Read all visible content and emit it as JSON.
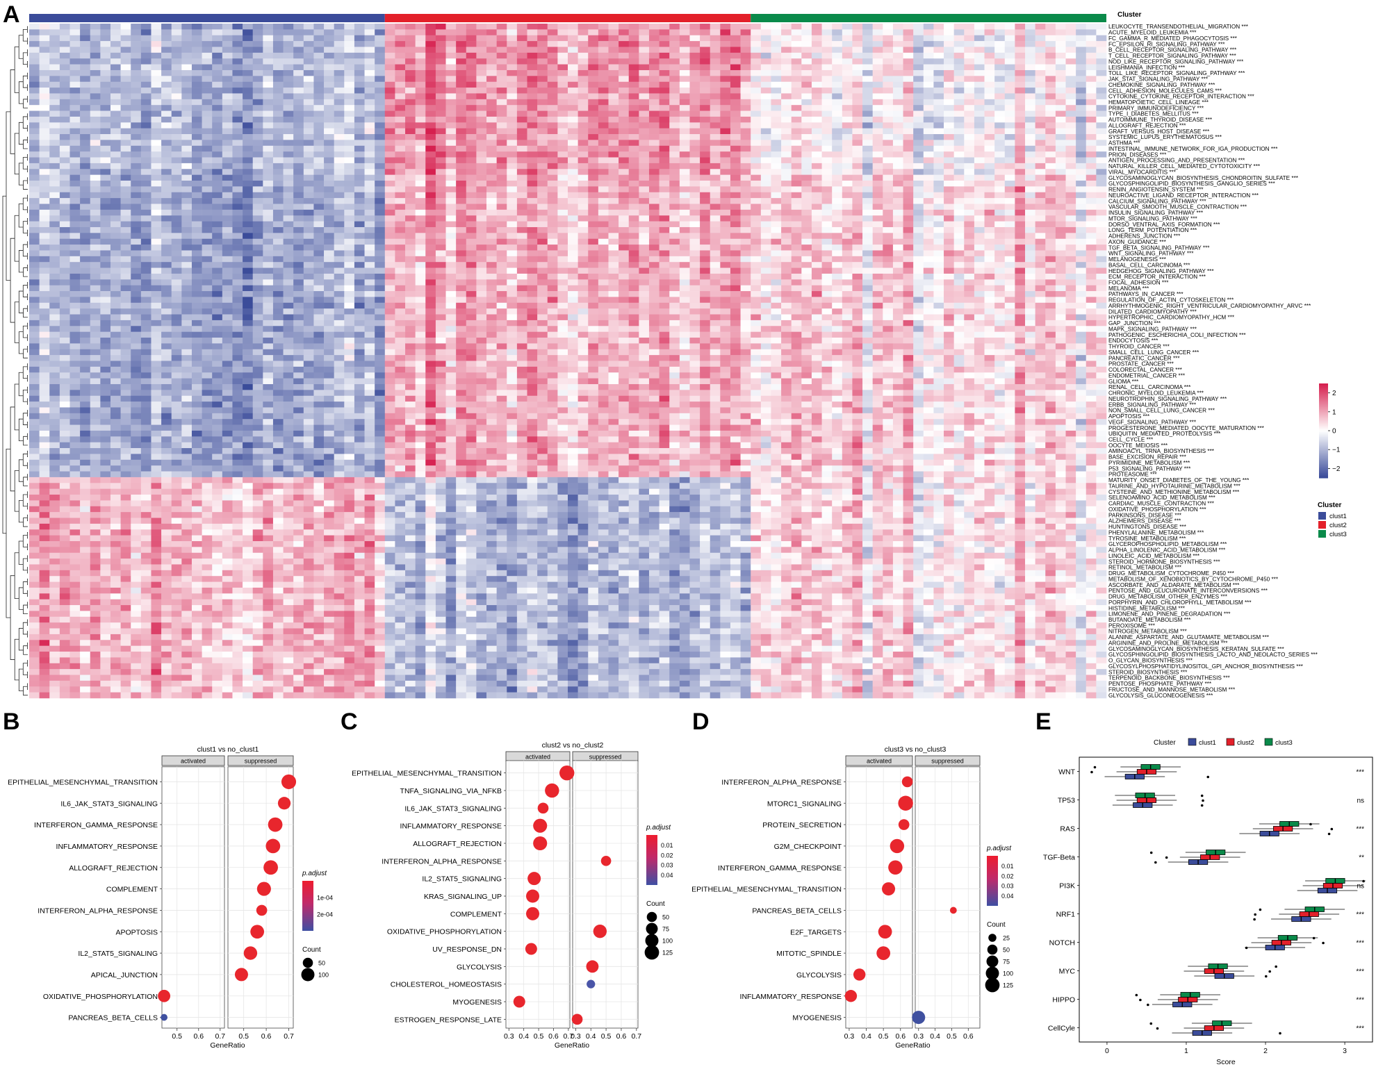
{
  "panel_letters": [
    "A",
    "B",
    "C",
    "D",
    "E"
  ],
  "heatmap": {
    "cluster_label": "Cluster",
    "clusters": [
      "clust1",
      "clust2",
      "clust3"
    ],
    "cluster_colors": [
      "#3b4c9a",
      "#e3202a",
      "#0a8a4a"
    ],
    "colorbar_ticks": [
      "2",
      "1",
      "0",
      "−1",
      "−2"
    ],
    "legend_title": "Cluster",
    "pathways": [
      "LEUKOCYTE_TRANSENDOTHELIAL_MIGRATION ***",
      "ACUTE_MYELOID_LEUKEMIA ***",
      "FC_GAMMA_R_MEDIATED_PHAGOCYTOSIS ***",
      "FC_EPSILON_RI_SIGNALING_PATHWAY ***",
      "B_CELL_RECEPTOR_SIGNALING_PATHWAY ***",
      "T_CELL_RECEPTOR_SIGNALING_PATHWAY ***",
      "NOD_LIKE_RECEPTOR_SIGNALING_PATHWAY ***",
      "LEISHMANIA_INFECTION ***",
      "TOLL_LIKE_RECEPTOR_SIGNALING_PATHWAY ***",
      "JAK_STAT_SIGNALING_PATHWAY ***",
      "CHEMOKINE_SIGNALING_PATHWAY ***",
      "CELL_ADHESION_MOLECULES_CAMS ***",
      "CYTOKINE_CYTOKINE_RECEPTOR_INTERACTION ***",
      "HEMATOPOIETIC_CELL_LINEAGE ***",
      "PRIMARY_IMMUNODEFICIENCY ***",
      "TYPE_I_DIABETES_MELLITUS ***",
      "AUTOIMMUNE_THYROID_DISEASE ***",
      "ALLOGRAFT_REJECTION ***",
      "GRAFT_VERSUS_HOST_DISEASE ***",
      "SYSTEMIC_LUPUS_ERYTHEMATOSUS ***",
      "ASTHMA ***",
      "INTESTINAL_IMMUNE_NETWORK_FOR_IGA_PRODUCTION ***",
      "PRION_DISEASES ***",
      "ANTIGEN_PROCESSING_AND_PRESENTATION ***",
      "NATURAL_KILLER_CELL_MEDIATED_CYTOTOXICITY ***",
      "VIRAL_MYOCARDITIS ***",
      "GLYCOSAMINOGLYCAN_BIOSYNTHESIS_CHONDROITIN_SULFATE ***",
      "GLYCOSPHINGOLIPID_BIOSYNTHESIS_GANGLIO_SERIES ***",
      "RENIN_ANGIOTENSIN_SYSTEM ***",
      "NEUROACTIVE_LIGAND_RECEPTOR_INTERACTION ***",
      "CALCIUM_SIGNALING_PATHWAY ***",
      "VASCULAR_SMOOTH_MUSCLE_CONTRACTION ***",
      "INSULIN_SIGNALING_PATHWAY ***",
      "MTOR_SIGNALING_PATHWAY ***",
      "DORSO_VENTRAL_AXIS_FORMATION ***",
      "LONG_TERM_POTENTIATION ***",
      "ADHERENS_JUNCTION ***",
      "AXON_GUIDANCE ***",
      "TGF_BETA_SIGNALING_PATHWAY ***",
      "WNT_SIGNALING_PATHWAY ***",
      "MELANOGENESIS ***",
      "BASAL_CELL_CARCINOMA ***",
      "HEDGEHOG_SIGNALING_PATHWAY ***",
      "ECM_RECEPTOR_INTERACTION ***",
      "FOCAL_ADHESION ***",
      "MELANOMA ***",
      "PATHWAYS_IN_CANCER ***",
      "REGULATION_OF_ACTIN_CYTOSKELETON ***",
      "ARRHYTHMOGENIC_RIGHT_VENTRICULAR_CARDIOMYOPATHY_ARVC ***",
      "DILATED_CARDIOMYOPATHY ***",
      "HYPERTROPHIC_CARDIOMYOPATHY_HCM ***",
      "GAP_JUNCTION ***",
      "MAPK_SIGNALING_PATHWAY ***",
      "PATHOGENIC_ESCHERICHIA_COLI_INFECTION ***",
      "ENDOCYTOSIS ***",
      "THYROID_CANCER ***",
      "SMALL_CELL_LUNG_CANCER ***",
      "PANCREATIC_CANCER ***",
      "PROSTATE_CANCER ***",
      "COLORECTAL_CANCER ***",
      "ENDOMETRIAL_CANCER ***",
      "GLIOMA ***",
      "RENAL_CELL_CARCINOMA ***",
      "CHRONIC_MYELOID_LEUKEMIA ***",
      "NEUROTROPHIN_SIGNALING_PATHWAY ***",
      "ERBB_SIGNALING_PATHWAY ***",
      "NON_SMALL_CELL_LUNG_CANCER ***",
      "APOPTOSIS ***",
      "VEGF_SIGNALING_PATHWAY ***",
      "PROGESTERONE_MEDIATED_OOCYTE_MATURATION ***",
      "UBIQUITIN_MEDIATED_PROTEOLYSIS ***",
      "CELL_CYCLE ***",
      "OOCYTE_MEIOSIS ***",
      "AMINOACYL_TRNA_BIOSYNTHESIS ***",
      "BASE_EXCISION_REPAIR ***",
      "PYRIMIDINE_METABOLISM ***",
      "P53_SIGNALING_PATHWAY ***",
      "PROTEASOME ***",
      "MATURITY_ONSET_DIABETES_OF_THE_YOUNG ***",
      "TAURINE_AND_HYPOTAURINE_METABOLISM ***",
      "CYSTEINE_AND_METHIONINE_METABOLISM ***",
      "SELENOAMINO_ACID_METABOLISM ***",
      "CARDIAC_MUSCLE_CONTRACTION ***",
      "OXIDATIVE_PHOSPHORYLATION ***",
      "PARKINSONS_DISEASE ***",
      "ALZHEIMERS_DISEASE ***",
      "HUNTINGTONS_DISEASE ***",
      "PHENYLALANINE_METABOLISM ***",
      "TYROSINE_METABOLISM ***",
      "GLYCEROPHOSPHOLIPID_METABOLISM ***",
      "ALPHA_LINOLENIC_ACID_METABOLISM ***",
      "LINOLEIC_ACID_METABOLISM ***",
      "STEROID_HORMONE_BIOSYNTHESIS ***",
      "RETINOL_METABOLISM ***",
      "DRUG_METABOLISM_CYTOCHROME_P450 ***",
      "METABOLISM_OF_XENOBIOTICS_BY_CYTOCHROME_P450 ***",
      "ASCORBATE_AND_ALDARATE_METABOLISM ***",
      "PENTOSE_AND_GLUCURONATE_INTERCONVERSIONS ***",
      "DRUG_METABOLISM_OTHER_ENZYMES ***",
      "PORPHYRIN_AND_CHLOROPHYLL_METABOLISM ***",
      "HISTIDINE_METABOLISM ***",
      "LIMONENE_AND_PINENE_DEGRADATION ***",
      "BUTANOATE_METABOLISM ***",
      "PEROXISOME ***",
      "NITROGEN_METABOLISM ***",
      "ALANINE_ASPARTATE_AND_GLUTAMATE_METABOLISM ***",
      "ARGININE_AND_PROLINE_METABOLISM ***",
      "GLYCOSAMINOGLYCAN_BIOSYNTHESIS_KERATAN_SULFATE ***",
      "GLYCOSPHINGOLIPID_BIOSYNTHESIS_LACTO_AND_NEOLACTO_SERIES ***",
      "O_GLYCAN_BIOSYNTHESIS ***",
      "GLYCOSYLPHOSPHATIDYLINOSITOL_GPI_ANCHOR_BIOSYNTHESIS ***",
      "STEROID_BIOSYNTHESIS ***",
      "TERPENOID_BACKBONE_BIOSYNTHESIS ***",
      "PENTOSE_PHOSPHATE_PATHWAY ***",
      "FRUCTOSE_AND_MANNOSE_METABOLISM ***",
      "GLYCOLYSIS_GLUCONEOGENESIS ***"
    ]
  },
  "chart_data": [
    {
      "type": "heatmap",
      "panel": "A",
      "note_colors": {
        "low": "#3b4c9a",
        "mid": "#ffffff",
        "high": "#d6204f"
      },
      "value_range": [
        -2.5,
        2.5
      ],
      "column_groups": [
        {
          "name": "clust1",
          "n_columns": 35
        },
        {
          "name": "clust2",
          "n_columns": 36
        },
        {
          "name": "clust3",
          "n_columns": 35
        }
      ],
      "row_group_pattern": {
        "immune": {
          "rows": [
            0,
            25
          ],
          "clust1": -1.0,
          "clust2": 1.2,
          "clust3": 0.0
        },
        "signaling_cancer": {
          "rows": [
            26,
            77
          ],
          "clust1": -1.2,
          "clust2": 0.9,
          "clust3": 0.4
        },
        "metabolism": {
          "rows": [
            78,
            115
          ],
          "clust1": 0.8,
          "clust2": -0.9,
          "clust3": 0.3
        }
      }
    },
    {
      "type": "scatter",
      "panel": "B",
      "title": "clust1 vs no_clust1",
      "facets": [
        "activated",
        "suppressed"
      ],
      "xlabel": "GeneRatio",
      "x_ticks": [
        0.5,
        0.6,
        0.7
      ],
      "xlim": [
        0.43,
        0.72
      ],
      "categories": [
        "EPITHELIAL_MESENCHYMAL_TRANSITION",
        "IL6_JAK_STAT3_SIGNALING",
        "INTERFERON_GAMMA_RESPONSE",
        "INFLAMMATORY_RESPONSE",
        "ALLOGRAFT_REJECTION",
        "COMPLEMENT",
        "INTERFERON_ALPHA_RESPONSE",
        "APOPTOSIS",
        "IL2_STAT5_SIGNALING",
        "APICAL_JUNCTION",
        "OXIDATIVE_PHOSPHORYLATION",
        "PANCREAS_BETA_CELLS"
      ],
      "points": [
        {
          "term": "EPITHELIAL_MESENCHYMAL_TRANSITION",
          "facet": "suppressed",
          "x": 0.7,
          "count": 130,
          "color": "#e8262d"
        },
        {
          "term": "IL6_JAK_STAT3_SIGNALING",
          "facet": "suppressed",
          "x": 0.68,
          "count": 90,
          "color": "#e8262d"
        },
        {
          "term": "INTERFERON_GAMMA_RESPONSE",
          "facet": "suppressed",
          "x": 0.64,
          "count": 125,
          "color": "#e8262d"
        },
        {
          "term": "INFLAMMATORY_RESPONSE",
          "facet": "suppressed",
          "x": 0.63,
          "count": 125,
          "color": "#e8262d"
        },
        {
          "term": "ALLOGRAFT_REJECTION",
          "facet": "suppressed",
          "x": 0.62,
          "count": 125,
          "color": "#e8262d"
        },
        {
          "term": "COMPLEMENT",
          "facet": "suppressed",
          "x": 0.59,
          "count": 115,
          "color": "#e8262d"
        },
        {
          "term": "INTERFERON_ALPHA_RESPONSE",
          "facet": "suppressed",
          "x": 0.58,
          "count": 60,
          "color": "#e8262d"
        },
        {
          "term": "APOPTOSIS",
          "facet": "suppressed",
          "x": 0.56,
          "count": 110,
          "color": "#e8262d"
        },
        {
          "term": "IL2_STAT5_SIGNALING",
          "facet": "suppressed",
          "x": 0.53,
          "count": 105,
          "color": "#e8262d"
        },
        {
          "term": "APICAL_JUNCTION",
          "facet": "suppressed",
          "x": 0.49,
          "count": 100,
          "color": "#e8262d"
        },
        {
          "term": "OXIDATIVE_PHOSPHORYLATION",
          "facet": "activated",
          "x": 0.44,
          "count": 85,
          "color": "#e8262d"
        },
        {
          "term": "PANCREAS_BETA_CELLS",
          "facet": "activated",
          "x": 0.44,
          "count": 15,
          "color": "#3f50a0"
        }
      ],
      "color_legend": {
        "title": "p.adjust",
        "ticks": [
          "1e-04",
          "2e-04"
        ]
      },
      "size_legend": {
        "title": "Count",
        "ticks": [
          "50",
          "100"
        ]
      }
    },
    {
      "type": "scatter",
      "panel": "C",
      "title": "clust2 vs no_clust2",
      "facets": [
        "activated",
        "suppressed"
      ],
      "xlabel": "GeneRatio",
      "x_ticks_activated": [
        0.3,
        0.4,
        0.5,
        0.6,
        0.7
      ],
      "x_ticks_suppressed": [
        0.3,
        0.4,
        0.5,
        0.6,
        0.7
      ],
      "categories": [
        "EPITHELIAL_MESENCHYMAL_TRANSITION",
        "TNFA_SIGNALING_VIA_NFKB",
        "IL6_JAK_STAT3_SIGNALING",
        "INFLAMMATORY_RESPONSE",
        "ALLOGRAFT_REJECTION",
        "INTERFERON_ALPHA_RESPONSE",
        "IL2_STAT5_SIGNALING",
        "KRAS_SIGNALING_UP",
        "COMPLEMENT",
        "OXIDATIVE_PHOSPHORYLATION",
        "UV_RESPONSE_DN",
        "GLYCOLYSIS",
        "CHOLESTEROL_HOMEOSTASIS",
        "MYOGENESIS",
        "ESTROGEN_RESPONSE_LATE"
      ],
      "points": [
        {
          "term": "EPITHELIAL_MESENCHYMAL_TRANSITION",
          "facet": "activated",
          "x": 0.69,
          "count": 135,
          "color": "#e8262d"
        },
        {
          "term": "TNFA_SIGNALING_VIA_NFKB",
          "facet": "activated",
          "x": 0.59,
          "count": 120,
          "color": "#e8262d"
        },
        {
          "term": "IL6_JAK_STAT3_SIGNALING",
          "facet": "activated",
          "x": 0.53,
          "count": 60,
          "color": "#e8262d"
        },
        {
          "term": "INFLAMMATORY_RESPONSE",
          "facet": "activated",
          "x": 0.51,
          "count": 115,
          "color": "#e8262d"
        },
        {
          "term": "ALLOGRAFT_REJECTION",
          "facet": "activated",
          "x": 0.51,
          "count": 115,
          "color": "#e8262d"
        },
        {
          "term": "INTERFERON_ALPHA_RESPONSE",
          "facet": "suppressed",
          "x": 0.5,
          "count": 50,
          "color": "#e8262d"
        },
        {
          "term": "IL2_STAT5_SIGNALING",
          "facet": "activated",
          "x": 0.47,
          "count": 100,
          "color": "#e8262d"
        },
        {
          "term": "KRAS_SIGNALING_UP",
          "facet": "activated",
          "x": 0.46,
          "count": 100,
          "color": "#e8262d"
        },
        {
          "term": "COMPLEMENT",
          "facet": "activated",
          "x": 0.46,
          "count": 100,
          "color": "#e8262d"
        },
        {
          "term": "OXIDATIVE_PHOSPHORYLATION",
          "facet": "suppressed",
          "x": 0.46,
          "count": 105,
          "color": "#e8262d"
        },
        {
          "term": "UV_RESPONSE_DN",
          "facet": "activated",
          "x": 0.45,
          "count": 75,
          "color": "#e8262d"
        },
        {
          "term": "GLYCOLYSIS",
          "facet": "suppressed",
          "x": 0.41,
          "count": 85,
          "color": "#e8262d"
        },
        {
          "term": "CHOLESTEROL_HOMEOSTASIS",
          "facet": "suppressed",
          "x": 0.4,
          "count": 30,
          "color": "#4a55a8"
        },
        {
          "term": "MYOGENESIS",
          "facet": "activated",
          "x": 0.37,
          "count": 75,
          "color": "#e8262d"
        },
        {
          "term": "ESTROGEN_RESPONSE_LATE",
          "facet": "suppressed",
          "x": 0.31,
          "count": 60,
          "color": "#e8262d"
        }
      ],
      "color_legend": {
        "title": "p.adjust",
        "ticks": [
          "0.01",
          "0.02",
          "0.03",
          "0.04"
        ]
      },
      "size_legend": {
        "title": "Count",
        "ticks": [
          "50",
          "75",
          "100",
          "125"
        ]
      }
    },
    {
      "type": "scatter",
      "panel": "D",
      "title": "clust3 vs no_clust3",
      "facets": [
        "activated",
        "suppressed"
      ],
      "xlabel": "GeneRatio",
      "x_ticks_activated": [
        0.3,
        0.4,
        0.5,
        0.6
      ],
      "x_ticks_suppressed": [
        0.3,
        0.4,
        0.5,
        0.6
      ],
      "categories": [
        "INTERFERON_ALPHA_RESPONSE",
        "MTORC1_SIGNALING",
        "PROTEIN_SECRETION",
        "G2M_CHECKPOINT",
        "INTERFERON_GAMMA_RESPONSE",
        "EPITHELIAL_MESENCHYMAL_TRANSITION",
        "PANCREAS_BETA_CELLS",
        "E2F_TARGETS",
        "MITOTIC_SPINDLE",
        "GLYCOLYSIS",
        "INFLAMMATORY_RESPONSE",
        "MYOGENESIS"
      ],
      "points": [
        {
          "term": "INTERFERON_ALPHA_RESPONSE",
          "facet": "activated",
          "x": 0.64,
          "count": 60,
          "color": "#e8262d"
        },
        {
          "term": "MTORC1_SIGNALING",
          "facet": "activated",
          "x": 0.63,
          "count": 135,
          "color": "#e8262d"
        },
        {
          "term": "PROTEIN_SECRETION",
          "facet": "activated",
          "x": 0.62,
          "count": 60,
          "color": "#e8262d"
        },
        {
          "term": "G2M_CHECKPOINT",
          "facet": "activated",
          "x": 0.58,
          "count": 120,
          "color": "#e8262d"
        },
        {
          "term": "INTERFERON_GAMMA_RESPONSE",
          "facet": "activated",
          "x": 0.57,
          "count": 120,
          "color": "#e8262d"
        },
        {
          "term": "EPITHELIAL_MESENCHYMAL_TRANSITION",
          "facet": "activated",
          "x": 0.53,
          "count": 100,
          "color": "#e8262d"
        },
        {
          "term": "PANCREAS_BETA_CELLS",
          "facet": "suppressed",
          "x": 0.51,
          "count": 15,
          "color": "#e8262d"
        },
        {
          "term": "E2F_TARGETS",
          "facet": "activated",
          "x": 0.51,
          "count": 110,
          "color": "#e8262d"
        },
        {
          "term": "MITOTIC_SPINDLE",
          "facet": "activated",
          "x": 0.5,
          "count": 110,
          "color": "#e8262d"
        },
        {
          "term": "GLYCOLYSIS",
          "facet": "activated",
          "x": 0.36,
          "count": 80,
          "color": "#e8262d"
        },
        {
          "term": "INFLAMMATORY_RESPONSE",
          "facet": "activated",
          "x": 0.31,
          "count": 80,
          "color": "#e8262d"
        },
        {
          "term": "MYOGENESIS",
          "facet": "suppressed",
          "x": 0.3,
          "count": 100,
          "color": "#3f50a0"
        }
      ],
      "color_legend": {
        "title": "p.adjust",
        "ticks": [
          "0.01",
          "0.02",
          "0.03",
          "0.04"
        ]
      },
      "size_legend": {
        "title": "Count",
        "ticks": [
          "25",
          "50",
          "75",
          "100",
          "125"
        ]
      }
    },
    {
      "type": "box",
      "panel": "E",
      "legend_title": "Cluster",
      "series": [
        "clust1",
        "clust2",
        "clust3"
      ],
      "series_colors": [
        "#3b4c9a",
        "#e3202a",
        "#0a8a4a"
      ],
      "xlabel": "Score",
      "x_ticks": [
        0,
        1,
        2,
        3
      ],
      "xlim": [
        -0.35,
        3.35
      ],
      "categories": [
        "WNT",
        "TP53",
        "RAS",
        "TGF-Beta",
        "PI3K",
        "NRF1",
        "NOTCH",
        "MYC",
        "HIPPO",
        "CellCyle"
      ],
      "significance": [
        "***",
        "ns",
        "***",
        "**",
        "ns",
        "***",
        "***",
        "***",
        "***",
        "***"
      ],
      "medians": [
        [
          0.35,
          0.5,
          0.55
        ],
        [
          0.45,
          0.5,
          0.48
        ],
        [
          2.05,
          2.22,
          2.3
        ],
        [
          1.15,
          1.3,
          1.37
        ],
        [
          2.78,
          2.85,
          2.88
        ],
        [
          2.45,
          2.55,
          2.62
        ],
        [
          2.12,
          2.2,
          2.28
        ],
        [
          1.48,
          1.35,
          1.4
        ],
        [
          0.95,
          1.02,
          1.05
        ],
        [
          1.2,
          1.35,
          1.45
        ]
      ]
    }
  ]
}
